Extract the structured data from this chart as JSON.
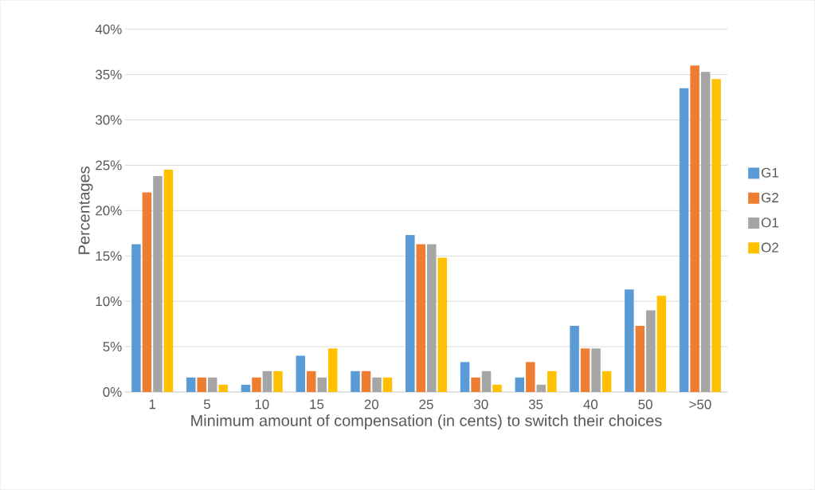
{
  "chart_data": {
    "type": "bar",
    "xlabel": "Minimum amount of compensation (in cents) to switch their choices",
    "ylabel": "Percentages",
    "categories": [
      "1",
      "5",
      "10",
      "15",
      "20",
      "25",
      "30",
      "35",
      "40",
      "50",
      ">50"
    ],
    "series": [
      {
        "name": "G1",
        "color": "#5b9bd5",
        "values": [
          16.3,
          1.6,
          0.8,
          4.0,
          2.3,
          17.3,
          3.3,
          1.6,
          7.3,
          11.3,
          33.5
        ]
      },
      {
        "name": "G2",
        "color": "#ed7d31",
        "values": [
          22.0,
          1.6,
          1.6,
          2.3,
          2.3,
          16.3,
          1.6,
          3.3,
          4.8,
          7.3,
          36.0
        ]
      },
      {
        "name": "O1",
        "color": "#a5a5a5",
        "values": [
          23.8,
          1.6,
          2.3,
          1.6,
          1.6,
          16.3,
          2.3,
          0.8,
          4.8,
          9.0,
          35.3
        ]
      },
      {
        "name": "O2",
        "color": "#ffc000",
        "values": [
          24.5,
          0.8,
          2.3,
          4.8,
          1.6,
          14.8,
          0.8,
          2.3,
          2.3,
          10.6,
          34.5
        ]
      }
    ],
    "ylim": [
      0,
      40
    ],
    "yticks": [
      {
        "value": 0,
        "label": "0%"
      },
      {
        "value": 5,
        "label": "5%"
      },
      {
        "value": 10,
        "label": "10%"
      },
      {
        "value": 15,
        "label": "15%"
      },
      {
        "value": 20,
        "label": "20%"
      },
      {
        "value": 25,
        "label": "25%"
      },
      {
        "value": 30,
        "label": "30%"
      },
      {
        "value": 35,
        "label": "35%"
      },
      {
        "value": 40,
        "label": "40%"
      }
    ],
    "grid": "y",
    "legend": "right"
  }
}
